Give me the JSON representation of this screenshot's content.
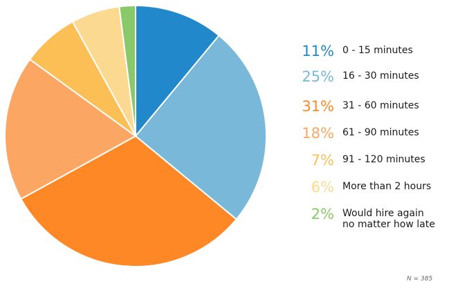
{
  "chart_data": {
    "type": "pie",
    "slices": [
      {
        "pct": "11%",
        "value": 11,
        "label": [
          "0 - 15 minutes"
        ],
        "color": "#2188cb"
      },
      {
        "pct": "25%",
        "value": 25,
        "label": [
          "16 - 30 minutes"
        ],
        "color": "#7ab8da"
      },
      {
        "pct": "31%",
        "value": 31,
        "label": [
          "31 - 60 minutes"
        ],
        "color": "#fe8726"
      },
      {
        "pct": "18%",
        "value": 18,
        "label": [
          "61 - 90 minutes"
        ],
        "color": "#fba763"
      },
      {
        "pct": "7%",
        "value": 7,
        "label": [
          "91 - 120 minutes"
        ],
        "color": "#fcbf55"
      },
      {
        "pct": "6%",
        "value": 6,
        "label": [
          "More than 2 hours"
        ],
        "color": "#fcd990"
      },
      {
        "pct": "2%",
        "value": 2,
        "label": [
          "Would hire again",
          "no matter how late"
        ],
        "color": "#8ac96a"
      }
    ],
    "note": "N = 385",
    "legend_position": "right",
    "start_angle": "12 o'clock, clockwise"
  }
}
